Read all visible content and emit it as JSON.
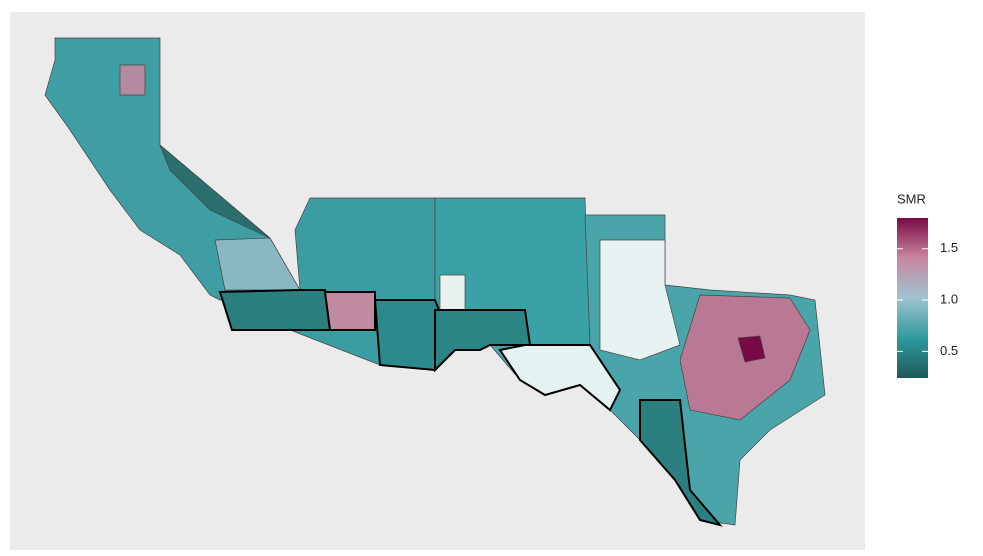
{
  "legend": {
    "title": "SMR",
    "lim": [
      0.24,
      1.8
    ],
    "ticks": [
      0.5,
      {
        "value": 1,
        "label": "1.0"
      },
      1.5
    ],
    "colors": [
      "#1f5959",
      "#2e9a9e",
      "#9fc3cf",
      "#c9869f",
      "#7a0a45"
    ]
  }
}
